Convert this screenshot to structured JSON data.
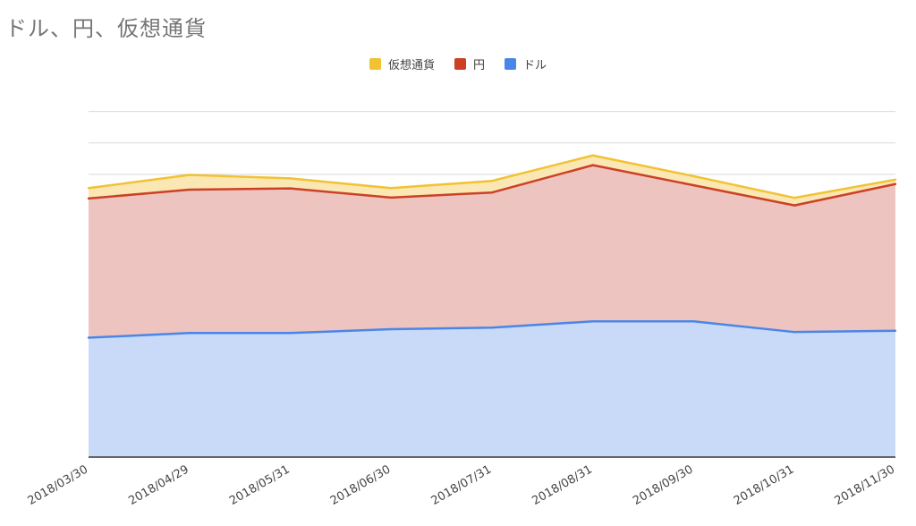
{
  "chart_data": {
    "type": "area",
    "stacked": true,
    "title": "ドル、円、仮想通貨",
    "categories": [
      "2018/03/30",
      "2018/04/29",
      "2018/05/31",
      "2018/06/30",
      "2018/07/31",
      "2018/08/31",
      "2018/09/30",
      "2018/10/31",
      "2018/11/30"
    ],
    "series": [
      {
        "name": "ドル",
        "color": "#4a86e8",
        "values": [
          3.8,
          3.95,
          3.95,
          4.07,
          4.12,
          4.32,
          4.32,
          3.98,
          4.02
        ]
      },
      {
        "name": "円",
        "color": "#cc4125",
        "values": [
          4.43,
          4.56,
          4.6,
          4.19,
          4.3,
          4.97,
          4.33,
          4.03,
          4.67
        ]
      },
      {
        "name": "仮想通貨",
        "color": "#f1c232",
        "values": [
          0.33,
          0.47,
          0.32,
          0.3,
          0.37,
          0.31,
          0.29,
          0.24,
          0.14
        ]
      }
    ],
    "legend_order": [
      "仮想通貨",
      "円",
      "ドル"
    ],
    "ylim": [
      0,
      11.5
    ],
    "y_tick_labels_shown": false,
    "grid": true,
    "legend_position": "top"
  }
}
